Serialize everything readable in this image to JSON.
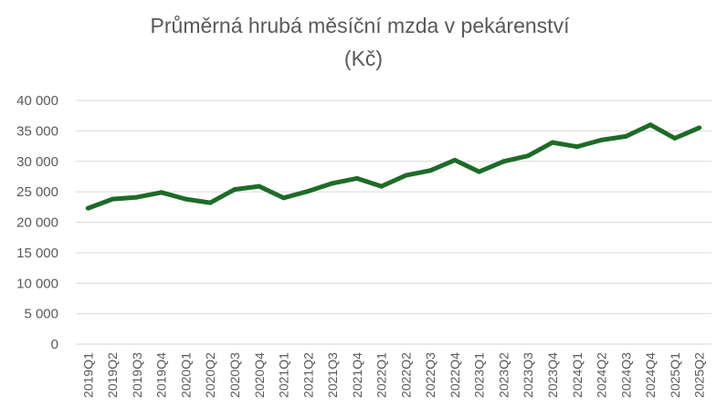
{
  "chart_data": {
    "type": "line",
    "title_line1": "Průměrná hrubá měsíční mzda v pekárenství",
    "title_line2": "(Kč)",
    "xlabel": "",
    "ylabel": "",
    "ylim": [
      0,
      40000
    ],
    "y_ticks": [
      0,
      5000,
      10000,
      15000,
      20000,
      25000,
      30000,
      35000,
      40000
    ],
    "y_tick_labels": [
      "0",
      "5 000",
      "10 000",
      "15 000",
      "20 000",
      "25 000",
      "30 000",
      "35 000",
      "40 000"
    ],
    "grid": true,
    "legend": "none",
    "line_color": "#1e6b28",
    "categories": [
      "2019Q1",
      "2019Q2",
      "2019Q3",
      "2019Q4",
      "2020Q1",
      "2020Q2",
      "2020Q3",
      "2020Q4",
      "2021Q1",
      "2021Q2",
      "2021Q3",
      "2021Q4",
      "2022Q1",
      "2022Q2",
      "2022Q3",
      "2022Q4",
      "2023Q1",
      "2023Q2",
      "2023Q3",
      "2023Q4",
      "2024Q1",
      "2024Q2",
      "2024Q3",
      "2024Q4",
      "2025Q1",
      "2025Q2"
    ],
    "values": [
      22300,
      23800,
      24100,
      24900,
      23800,
      23200,
      25400,
      25900,
      24000,
      25100,
      26400,
      27200,
      25900,
      27700,
      28500,
      30200,
      28300,
      30000,
      30900,
      33100,
      32400,
      33500,
      34100,
      36000,
      33800,
      35500
    ]
  }
}
